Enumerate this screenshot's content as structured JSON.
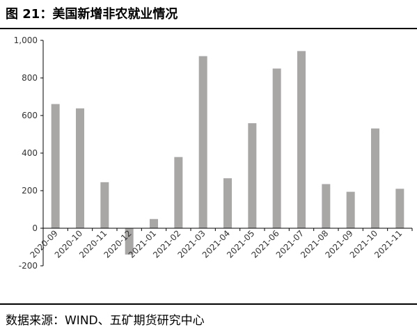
{
  "header": {
    "title": "图 21：美国新增非农就业情况"
  },
  "footer": {
    "source": "数据来源：WIND、五矿期货研究中心"
  },
  "colors": {
    "bar": "#a9a6a6",
    "axis": "#000000",
    "text": "#333333"
  },
  "chart_data": {
    "type": "bar",
    "title": "",
    "xlabel": "",
    "ylabel": "",
    "categories": [
      "2020-09",
      "2020-10",
      "2020-11",
      "2020-12",
      "2021-01",
      "2021-02",
      "2021-03",
      "2021-04",
      "2021-05",
      "2021-06",
      "2021-07",
      "2021-08",
      "2021-09",
      "2021-10",
      "2021-11"
    ],
    "values": [
      661,
      638,
      245,
      -140,
      49,
      379,
      916,
      266,
      559,
      850,
      943,
      235,
      194,
      531,
      210
    ],
    "yticks": [
      -200,
      0,
      200,
      400,
      600,
      800,
      1000
    ],
    "ytick_labels": [
      "-200",
      "0",
      "200",
      "400",
      "600",
      "800",
      "1,000"
    ],
    "ylim": [
      -200,
      1000
    ],
    "grid": false,
    "legend": "none"
  }
}
